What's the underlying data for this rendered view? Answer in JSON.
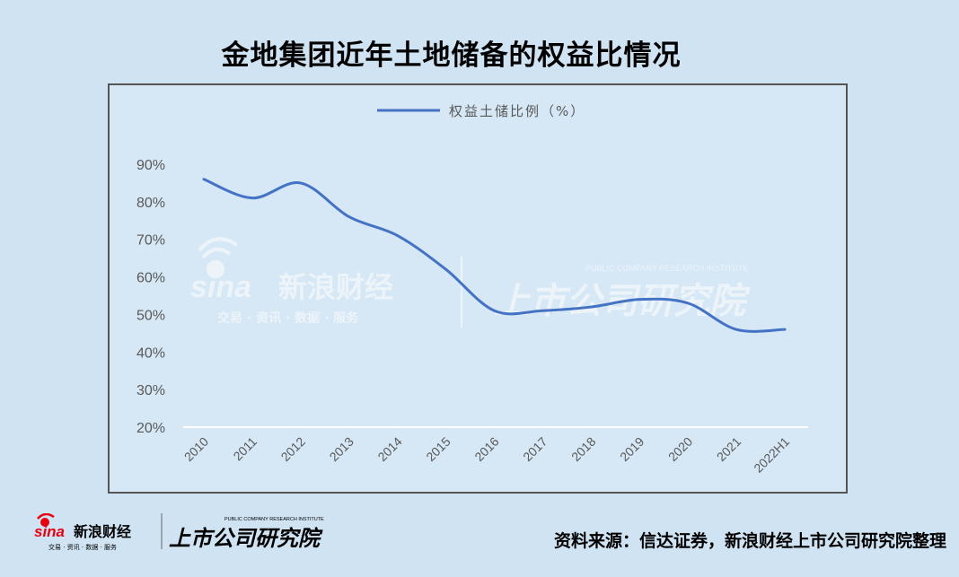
{
  "title": "金地集团近年土地储备的权益比情况",
  "source_note": "资料来源：信达证券，新浪财经上市公司研究院整理",
  "watermark": {
    "sina_logo_text": "sina",
    "brand_text": "新浪财经",
    "brand_sub": "交易 · 资讯 · 数据 · 服务",
    "institute_text": "上市公司研究院",
    "institute_sub": "PUBLIC COMPANY RESEARCH INSTITUTE"
  },
  "colors": {
    "background": "#cfe3f3",
    "line": "#4472c4",
    "frame": "#555555",
    "text": "#595959"
  },
  "chart_data": {
    "type": "line",
    "x": [
      "2010",
      "2011",
      "2012",
      "2013",
      "2014",
      "2015",
      "2016",
      "2017",
      "2018",
      "2019",
      "2020",
      "2021",
      "2022H1"
    ],
    "series": [
      {
        "name": "权益土储比例（%）",
        "values": [
          86,
          81,
          85,
          76,
          71,
          62,
          51,
          51,
          52,
          54,
          53,
          46,
          46
        ]
      }
    ],
    "y_ticks": [
      "90%",
      "80%",
      "70%",
      "60%",
      "50%",
      "40%",
      "30%",
      "20%"
    ],
    "ylim": [
      20,
      90
    ],
    "legend_position": "top-center",
    "grid": false
  }
}
